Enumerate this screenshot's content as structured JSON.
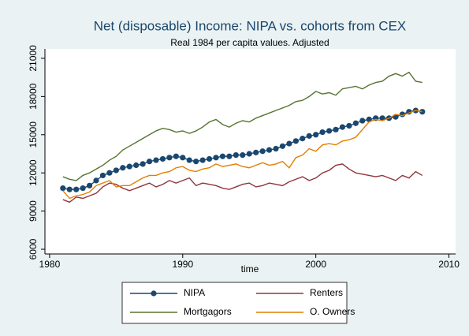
{
  "chart_data": {
    "type": "line",
    "title": "Net (disposable) Income: NIPA vs. cohorts from CEX",
    "subtitle": "Real 1984 per capita values. Adjusted",
    "x_label": "time",
    "x": [
      1981,
      1981.5,
      1982,
      1982.5,
      1983,
      1983.5,
      1984,
      1984.5,
      1985,
      1985.5,
      1986,
      1986.5,
      1987,
      1987.5,
      1988,
      1988.5,
      1989,
      1989.5,
      1990,
      1990.5,
      1991,
      1991.5,
      1992,
      1992.5,
      1993,
      1993.5,
      1994,
      1994.5,
      1995,
      1995.5,
      1996,
      1996.5,
      1997,
      1997.5,
      1998,
      1998.5,
      1999,
      1999.5,
      2000,
      2000.5,
      2001,
      2001.5,
      2002,
      2002.5,
      2003,
      2003.5,
      2004,
      2004.5,
      2005,
      2005.5,
      2006,
      2006.5,
      2007,
      2007.5,
      2008
    ],
    "series": [
      {
        "name": "NIPA",
        "color": "#1a476f",
        "markers": true,
        "values": [
          10800,
          10700,
          10700,
          10800,
          11000,
          11400,
          11800,
          12000,
          12200,
          12400,
          12500,
          12600,
          12700,
          12900,
          13000,
          13100,
          13200,
          13300,
          13200,
          13000,
          12900,
          13000,
          13100,
          13200,
          13300,
          13300,
          13400,
          13400,
          13500,
          13600,
          13700,
          13800,
          13900,
          14100,
          14300,
          14500,
          14700,
          14900,
          15000,
          15200,
          15300,
          15400,
          15600,
          15700,
          15900,
          16100,
          16200,
          16300,
          16300,
          16300,
          16400,
          16600,
          16800,
          16900,
          16800
        ]
      },
      {
        "name": "Renters",
        "color": "#90353b",
        "markers": false,
        "values": [
          9900,
          9700,
          10100,
          10000,
          10200,
          10400,
          10900,
          11200,
          11100,
          10800,
          10600,
          10800,
          11000,
          11200,
          10900,
          11100,
          11400,
          11200,
          11400,
          11600,
          11000,
          11200,
          11100,
          11000,
          10800,
          10700,
          10900,
          11100,
          11200,
          10900,
          11000,
          11200,
          11100,
          11000,
          11300,
          11500,
          11700,
          11400,
          11600,
          12000,
          12200,
          12600,
          12700,
          12300,
          12000,
          11900,
          11800,
          11700,
          11800,
          11600,
          11400,
          11800,
          11600,
          12100,
          11800
        ]
      },
      {
        "name": "Mortgagors",
        "color": "#55752f",
        "markers": false,
        "values": [
          11700,
          11500,
          11400,
          11800,
          12000,
          12300,
          12600,
          13000,
          13300,
          13800,
          14100,
          14400,
          14700,
          15000,
          15300,
          15500,
          15400,
          15200,
          15300,
          15100,
          15300,
          15600,
          16000,
          16200,
          15800,
          15600,
          15900,
          16100,
          16000,
          16300,
          16500,
          16700,
          16900,
          17100,
          17300,
          17600,
          17700,
          18000,
          18400,
          18200,
          18300,
          18100,
          18600,
          18700,
          18800,
          18600,
          18900,
          19100,
          19200,
          19600,
          19800,
          19600,
          19900,
          19200,
          19100
        ]
      },
      {
        "name": "O. Owners",
        "color": "#e37e00",
        "markers": false,
        "values": [
          10600,
          10000,
          10200,
          10300,
          10500,
          11000,
          11200,
          11400,
          10900,
          11000,
          11000,
          11300,
          11600,
          11800,
          11800,
          12000,
          12100,
          12400,
          12500,
          12200,
          12100,
          12300,
          12400,
          12700,
          12500,
          12600,
          12700,
          12500,
          12400,
          12600,
          12800,
          12600,
          12700,
          12900,
          12400,
          13200,
          13400,
          13900,
          13700,
          14200,
          14300,
          14200,
          14500,
          14600,
          14800,
          15400,
          16000,
          16200,
          16100,
          16300,
          16600,
          16500,
          16700,
          16900,
          16800
        ]
      }
    ],
    "xlim": [
      1979.65,
      2010.5
    ],
    "xticks": [
      1980,
      1990,
      2000,
      2010
    ],
    "ylim": [
      5630,
      21740
    ],
    "yticks": [
      6000,
      9000,
      12000,
      15000,
      18000,
      21000
    ],
    "grid": false,
    "legend": "bottom"
  }
}
